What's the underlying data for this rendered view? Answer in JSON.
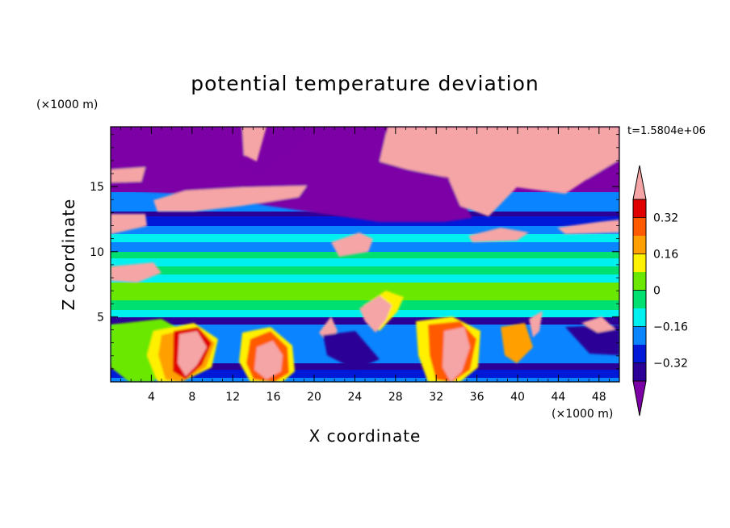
{
  "chart_data": {
    "type": "heatmap",
    "title": "potential temperature deviation",
    "xlabel": "X coordinate",
    "ylabel": "Z coordinate",
    "x_unit": "(×1000 m)",
    "y_unit": "(×1000 m)",
    "time_label": "t=1.5804e+06",
    "xlim": [
      0,
      50
    ],
    "ylim": [
      0,
      19.6
    ],
    "x_ticks": [
      4,
      8,
      12,
      16,
      20,
      24,
      28,
      32,
      36,
      40,
      44,
      48
    ],
    "y_ticks": [
      5,
      10,
      15
    ],
    "colorbar": {
      "ticks": [
        0.32,
        0.16,
        0,
        -0.16,
        -0.32
      ],
      "tick_labels": [
        "0.32",
        "0.16",
        "0",
        "−0.16",
        "−0.32"
      ],
      "levels": [
        -0.4,
        -0.32,
        -0.24,
        -0.16,
        -0.08,
        0,
        0.08,
        0.16,
        0.24,
        0.32,
        0.4
      ],
      "colors": [
        "#7b00a6",
        "#2a0096",
        "#0018d8",
        "#0a84ff",
        "#00f0f0",
        "#00e070",
        "#6ae800",
        "#fff000",
        "#ffa000",
        "#ff5a00",
        "#e00000",
        "#f5a5a5"
      ],
      "extend": "both"
    }
  }
}
